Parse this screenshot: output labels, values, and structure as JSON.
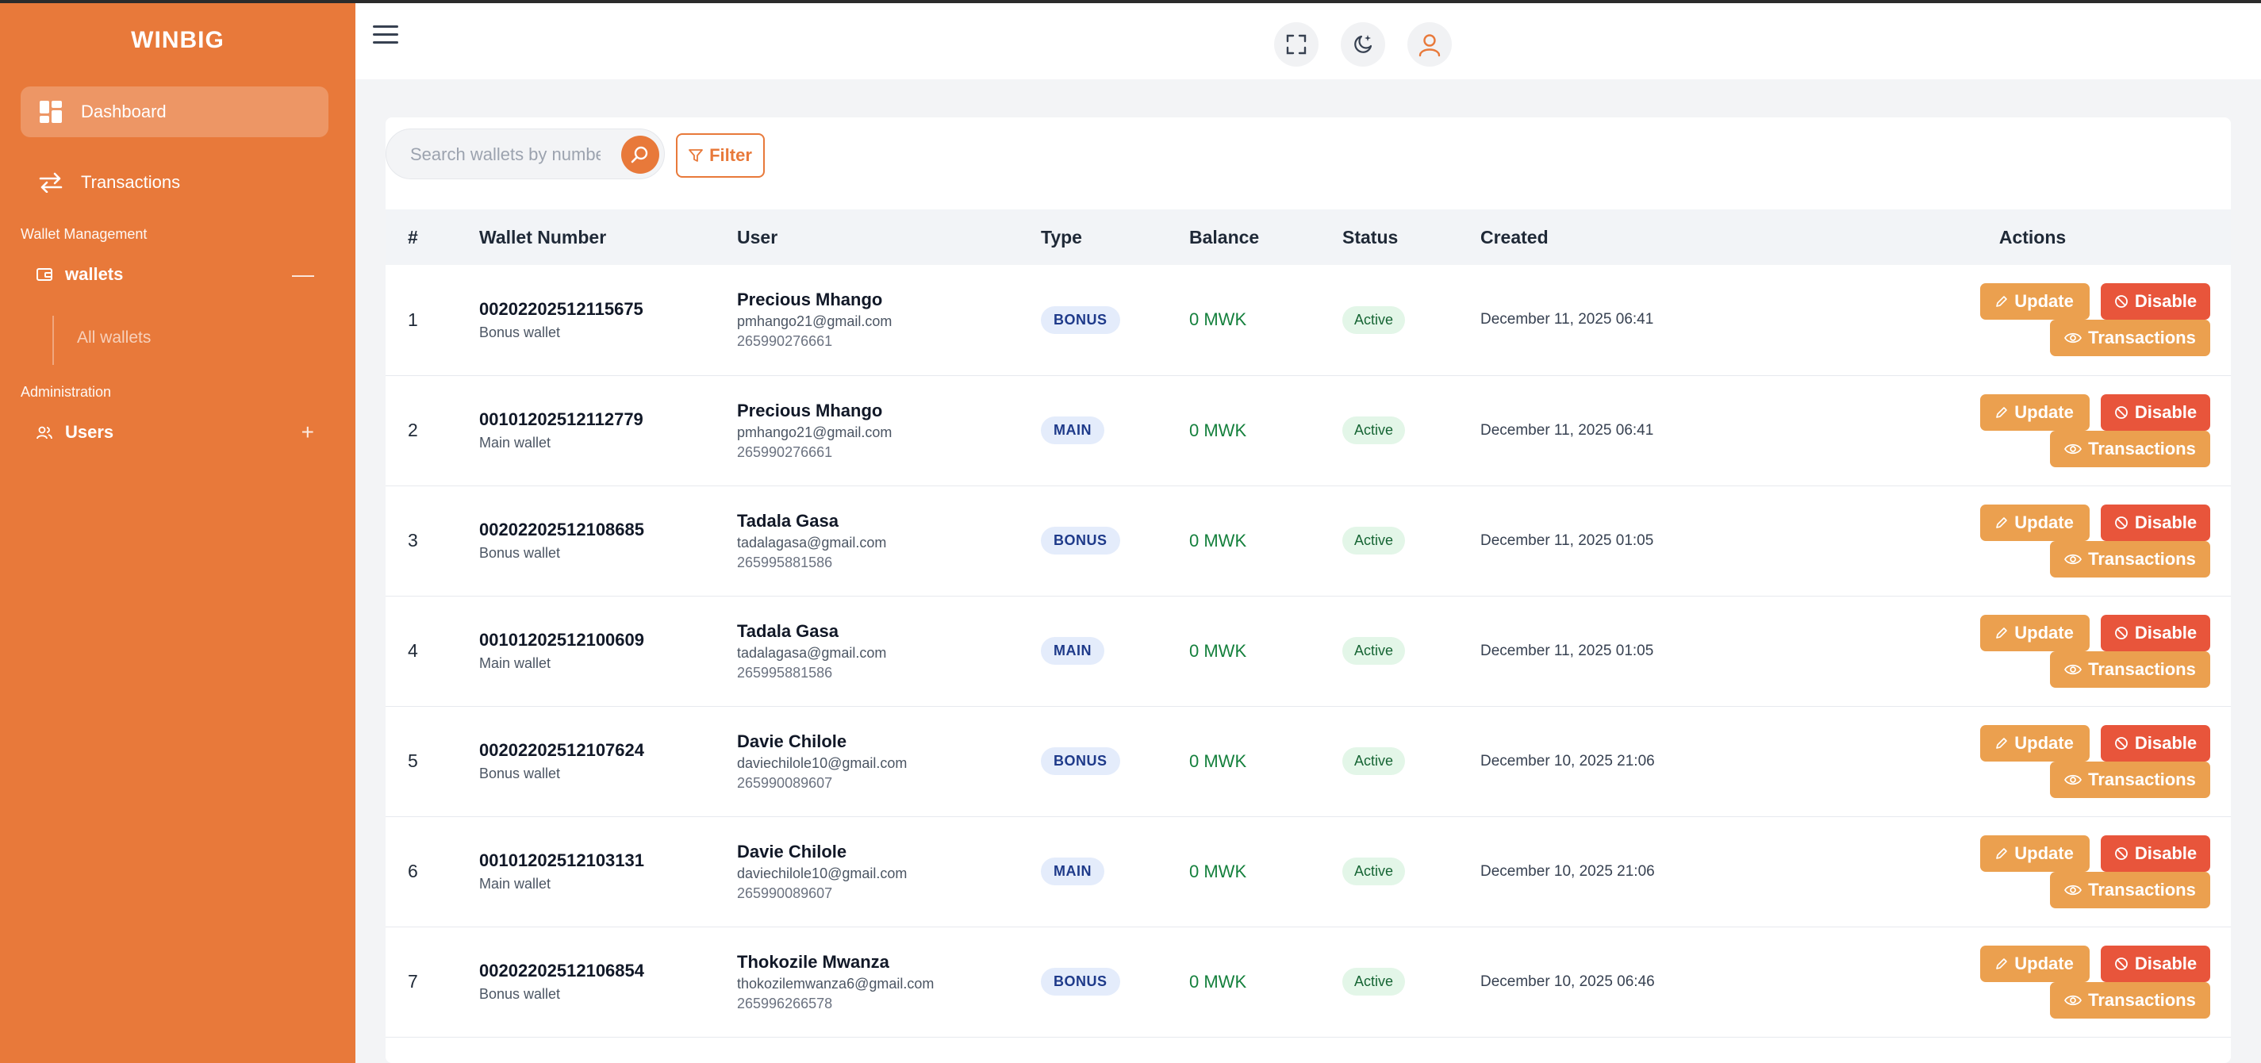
{
  "sidebar": {
    "brand": "WINBIG",
    "nav": {
      "dashboard": "Dashboard",
      "transactions": "Transactions"
    },
    "wallet_management_label": "Wallet Management",
    "wallets_group": "wallets",
    "wallets_toggle": "—",
    "all_wallets": "All wallets",
    "administration_label": "Administration",
    "users_group": "Users",
    "users_toggle": "+"
  },
  "header": {
    "icons": [
      "menu-icon",
      "fullscreen-icon",
      "theme-toggle-icon",
      "user-icon"
    ]
  },
  "toolbar": {
    "search_placeholder": "Search wallets by number",
    "filter_label": "Filter"
  },
  "table": {
    "headers": [
      "#",
      "Wallet Number",
      "User",
      "Type",
      "Balance",
      "Status",
      "Created",
      "Actions"
    ],
    "action_labels": {
      "update": "Update",
      "disable": "Disable",
      "transactions": "Transactions"
    },
    "rows": [
      {
        "num": "1",
        "wallet_number": "00202202512115675",
        "wallet_type_label": "Bonus wallet",
        "user_name": "Precious Mhango",
        "email": "pmhango21@gmail.com",
        "phone": "265990276661",
        "type": "BONUS",
        "balance": "0 MWK",
        "status": "Active",
        "created": "December 11, 2025 06:41"
      },
      {
        "num": "2",
        "wallet_number": "00101202512112779",
        "wallet_type_label": "Main wallet",
        "user_name": "Precious Mhango",
        "email": "pmhango21@gmail.com",
        "phone": "265990276661",
        "type": "MAIN",
        "balance": "0 MWK",
        "status": "Active",
        "created": "December 11, 2025 06:41"
      },
      {
        "num": "3",
        "wallet_number": "00202202512108685",
        "wallet_type_label": "Bonus wallet",
        "user_name": "Tadala Gasa",
        "email": "tadalagasa@gmail.com",
        "phone": "265995881586",
        "type": "BONUS",
        "balance": "0 MWK",
        "status": "Active",
        "created": "December 11, 2025 01:05"
      },
      {
        "num": "4",
        "wallet_number": "00101202512100609",
        "wallet_type_label": "Main wallet",
        "user_name": "Tadala Gasa",
        "email": "tadalagasa@gmail.com",
        "phone": "265995881586",
        "type": "MAIN",
        "balance": "0 MWK",
        "status": "Active",
        "created": "December 11, 2025 01:05"
      },
      {
        "num": "5",
        "wallet_number": "00202202512107624",
        "wallet_type_label": "Bonus wallet",
        "user_name": "Davie Chilole",
        "email": "daviechilole10@gmail.com",
        "phone": "265990089607",
        "type": "BONUS",
        "balance": "0 MWK",
        "status": "Active",
        "created": "December 10, 2025 21:06"
      },
      {
        "num": "6",
        "wallet_number": "00101202512103131",
        "wallet_type_label": "Main wallet",
        "user_name": "Davie Chilole",
        "email": "daviechilole10@gmail.com",
        "phone": "265990089607",
        "type": "MAIN",
        "balance": "0 MWK",
        "status": "Active",
        "created": "December 10, 2025 21:06"
      },
      {
        "num": "7",
        "wallet_number": "00202202512106854",
        "wallet_type_label": "Bonus wallet",
        "user_name": "Thokozile Mwanza",
        "email": "thokozilemwanza6@gmail.com",
        "phone": "265996266578",
        "type": "BONUS",
        "balance": "0 MWK",
        "status": "Active",
        "created": "December 10, 2025 06:46"
      }
    ]
  },
  "colors": {
    "accent": "#e8793a",
    "update_button": "#eba04f",
    "disable_button": "#e8553b",
    "balance_text": "#15803d"
  }
}
